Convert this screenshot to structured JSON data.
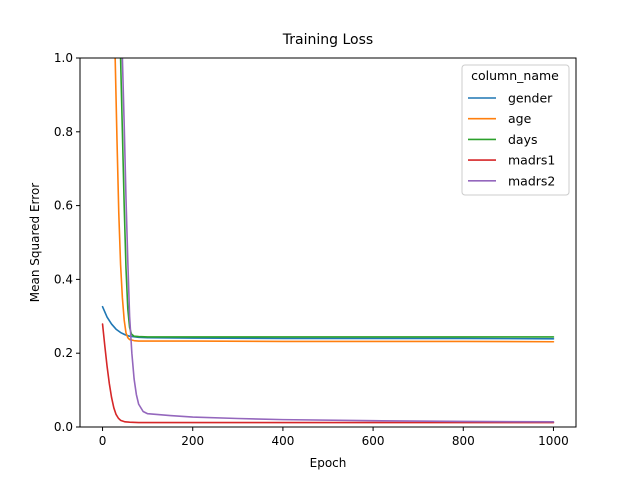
{
  "chart_data": {
    "type": "line",
    "title": "Training Loss",
    "xlabel": "Epoch",
    "ylabel": "Mean Squared Error",
    "xlim": [
      -50,
      1050
    ],
    "ylim": [
      0,
      1.0
    ],
    "xticks": [
      0,
      200,
      400,
      600,
      800,
      1000
    ],
    "xtick_labels": [
      "0",
      "200",
      "400",
      "600",
      "800",
      "1000"
    ],
    "yticks": [
      0.0,
      0.2,
      0.4,
      0.6,
      0.8,
      1.0
    ],
    "ytick_labels": [
      "0.0",
      "0.2",
      "0.4",
      "0.6",
      "0.8",
      "1.0"
    ],
    "grid": false,
    "legend": {
      "title": "column_name",
      "placement": "top-right"
    },
    "series": [
      {
        "name": "gender",
        "color": "#1f77b4",
        "x": [
          0,
          10,
          20,
          30,
          40,
          50,
          60,
          80,
          100,
          200,
          400,
          600,
          800,
          1000
        ],
        "y": [
          0.326,
          0.298,
          0.279,
          0.265,
          0.256,
          0.25,
          0.246,
          0.243,
          0.242,
          0.241,
          0.24,
          0.24,
          0.24,
          0.239
        ]
      },
      {
        "name": "age",
        "color": "#ff7f0e",
        "x": [
          28,
          32,
          36,
          40,
          44,
          48,
          52,
          56,
          60,
          70,
          80,
          100,
          200,
          400,
          600,
          800,
          1000
        ],
        "y": [
          1.0,
          0.78,
          0.58,
          0.44,
          0.35,
          0.29,
          0.255,
          0.242,
          0.237,
          0.234,
          0.233,
          0.233,
          0.233,
          0.232,
          0.232,
          0.232,
          0.231
        ]
      },
      {
        "name": "days",
        "color": "#2ca02c",
        "x": [
          40,
          44,
          48,
          52,
          56,
          60,
          64,
          70,
          80,
          100,
          200,
          400,
          600,
          800,
          1000
        ],
        "y": [
          1.0,
          0.8,
          0.6,
          0.43,
          0.32,
          0.27,
          0.252,
          0.246,
          0.245,
          0.244,
          0.244,
          0.244,
          0.244,
          0.244,
          0.244
        ]
      },
      {
        "name": "madrs1",
        "color": "#d62728",
        "x": [
          0,
          5,
          10,
          15,
          20,
          25,
          30,
          35,
          40,
          50,
          60,
          80,
          100,
          200,
          400,
          600,
          800,
          1000
        ],
        "y": [
          0.279,
          0.22,
          0.165,
          0.118,
          0.08,
          0.052,
          0.034,
          0.024,
          0.018,
          0.014,
          0.013,
          0.012,
          0.012,
          0.012,
          0.012,
          0.012,
          0.012,
          0.012
        ]
      },
      {
        "name": "madrs2",
        "color": "#9467bd",
        "x": [
          44,
          48,
          52,
          56,
          60,
          65,
          70,
          75,
          80,
          90,
          100,
          150,
          200,
          300,
          400,
          600,
          800,
          1000
        ],
        "y": [
          1.0,
          0.82,
          0.62,
          0.45,
          0.3,
          0.2,
          0.13,
          0.088,
          0.062,
          0.042,
          0.036,
          0.031,
          0.027,
          0.023,
          0.02,
          0.017,
          0.015,
          0.014
        ]
      }
    ]
  }
}
